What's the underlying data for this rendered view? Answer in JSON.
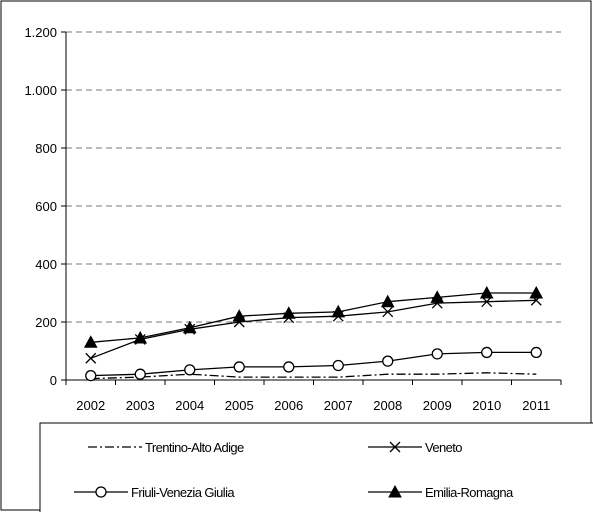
{
  "chart_data": {
    "type": "line",
    "categories": [
      "2002",
      "2003",
      "2004",
      "2005",
      "2006",
      "2007",
      "2008",
      "2009",
      "2010",
      "2011"
    ],
    "ylim": [
      0,
      1200
    ],
    "yticks": [
      0,
      200,
      400,
      600,
      800,
      1000,
      1200
    ],
    "ytick_labels": [
      "0",
      "200",
      "400",
      "600",
      "800",
      "1.000",
      "1.200"
    ],
    "grid": "horizontal dashed",
    "legend_position": "bottom",
    "series": [
      {
        "name": "Trentino-Alto Adige",
        "marker": "none",
        "dash": "dash-dot",
        "color": "#000000",
        "values": [
          5,
          10,
          20,
          10,
          10,
          10,
          20,
          20,
          25,
          20
        ]
      },
      {
        "name": "Veneto",
        "marker": "x",
        "dash": "solid",
        "color": "#000000",
        "values": [
          75,
          140,
          175,
          200,
          215,
          220,
          235,
          265,
          270,
          275
        ]
      },
      {
        "name": "Friuli-Venezia Giulia",
        "marker": "circle",
        "dash": "solid",
        "color": "#000000",
        "values": [
          15,
          20,
          35,
          45,
          45,
          50,
          65,
          90,
          95,
          95
        ]
      },
      {
        "name": "Emilia-Romagna",
        "marker": "triangle",
        "dash": "solid",
        "color": "#000000",
        "values": [
          130,
          145,
          180,
          220,
          230,
          235,
          270,
          285,
          300,
          300
        ]
      }
    ]
  }
}
